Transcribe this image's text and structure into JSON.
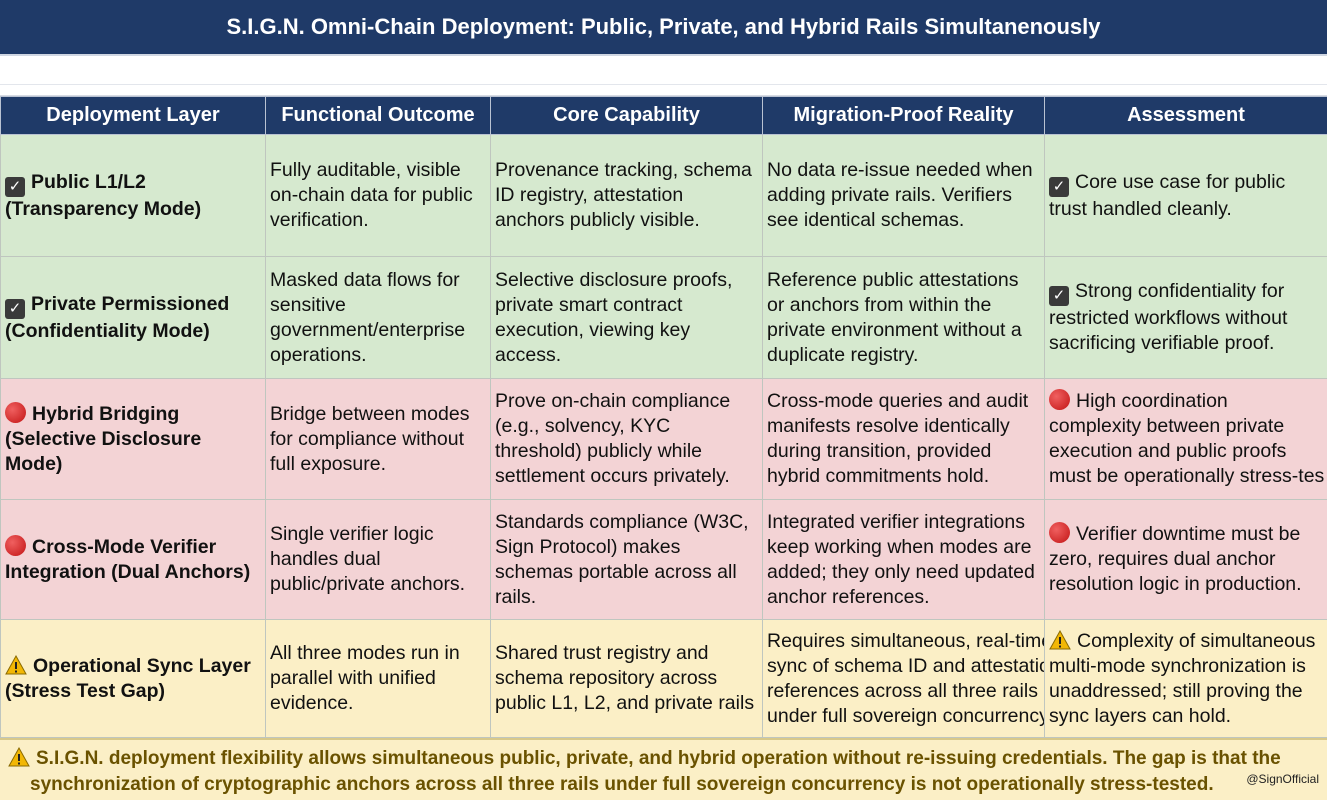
{
  "title": "S.I.G.N. Omni-Chain Deployment: Public, Private, and Hybrid Rails Simultanenously",
  "headers": [
    "Deployment Layer",
    "Functional Outcome",
    "Core Capability",
    "Migration-Proof Reality",
    "Assessment"
  ],
  "rows": [
    {
      "status": "check",
      "layer": [
        "Public L1/L2",
        "(Transparency Mode)"
      ],
      "outcome": [
        "Fully auditable, visible",
        "on-chain data for public",
        "verification."
      ],
      "capability": [
        "Provenance tracking, schema",
        "ID registry, attestation",
        "anchors publicly visible."
      ],
      "reality": [
        "No data re-issue needed when",
        "adding private rails. Verifiers",
        "see identical schemas."
      ],
      "assessment": [
        "Core use case for public",
        "trust handled cleanly."
      ]
    },
    {
      "status": "check",
      "layer": [
        "Private Permissioned",
        "(Confidentiality Mode)"
      ],
      "outcome": [
        "Masked data flows for",
        "sensitive",
        "government/enterprise",
        "operations."
      ],
      "capability": [
        "Selective disclosure proofs,",
        "private smart contract",
        "execution, viewing key",
        "access."
      ],
      "reality": [
        "Reference public attestations",
        "or anchors from within the",
        "private environment without a",
        "duplicate registry."
      ],
      "assessment": [
        "Strong confidentiality for",
        "restricted workflows without",
        "sacrificing verifiable proof."
      ]
    },
    {
      "status": "red",
      "layer": [
        "Hybrid Bridging",
        "(Selective Disclosure",
        "Mode)"
      ],
      "outcome": [
        "Bridge between modes",
        "for compliance without",
        "full exposure."
      ],
      "capability": [
        "Prove on-chain compliance",
        "(e.g., solvency, KYC",
        "threshold) publicly while",
        "settlement occurs privately."
      ],
      "reality": [
        "Cross-mode queries and audit",
        "manifests resolve identically",
        "during transition, provided",
        "hybrid commitments hold."
      ],
      "assessment": [
        "High coordination",
        "complexity between private",
        "execution and public proofs",
        "must be operationally stress-tes"
      ]
    },
    {
      "status": "red",
      "layer": [
        "Cross-Mode Verifier",
        "Integration (Dual Anchors)"
      ],
      "outcome": [
        "Single verifier logic",
        "handles dual",
        "public/private anchors."
      ],
      "capability": [
        "Standards compliance (W3C,",
        "Sign Protocol) makes",
        "schemas portable across all",
        "rails."
      ],
      "reality": [
        "Integrated verifier integrations",
        "keep working when modes are",
        "added; they only need updated",
        "anchor references."
      ],
      "assessment": [
        "Verifier downtime must be",
        "zero, requires dual anchor",
        "resolution logic in production."
      ]
    },
    {
      "status": "warn",
      "layer": [
        "Operational Sync Layer",
        "(Stress Test Gap)"
      ],
      "outcome": [
        "All three modes run in",
        "parallel with unified",
        "evidence."
      ],
      "capability": [
        "Shared trust registry and",
        "schema repository across",
        "public L1, L2, and private rails"
      ],
      "reality": [
        "Requires simultaneous, real-time",
        "sync of schema ID and attestation",
        "references across all three rails",
        "under full sovereign concurrency."
      ],
      "assessment": [
        "Complexity of simultaneous",
        "multi-mode synchronization is",
        "unaddressed; still proving the",
        "sync layers can hold."
      ]
    }
  ],
  "footer": {
    "line1": "S.I.G.N. deployment flexibility allows simultaneous public, private, and hybrid operation without re-issuing credentials. The gap is that the",
    "line2": "synchronization of cryptographic anchors across all three rails under full sovereign concurrency is not operationally stress-tested.",
    "handle": "@SignOfficial"
  },
  "colors": {
    "header_bg": "#1f3a68",
    "green_row": "#d6e9cf",
    "red_row": "#f3d3d5",
    "yellow_row": "#fbefc6",
    "footer_text": "#6a5200"
  },
  "icons": {
    "check": "checkbox-check-icon",
    "red": "red-circle-icon",
    "warn": "warning-triangle-icon"
  }
}
